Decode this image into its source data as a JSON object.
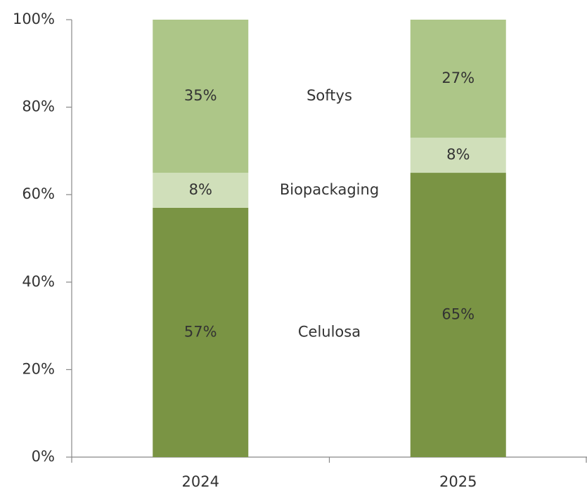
{
  "chart_data": {
    "type": "stacked_bar",
    "categories": [
      "2024",
      "2025"
    ],
    "series": [
      {
        "name": "Celulosa",
        "color": "#7a9444",
        "values": [
          57,
          65
        ],
        "value_labels": [
          "57%",
          "65%"
        ]
      },
      {
        "name": "Biopackaging",
        "color": "#d0dfba",
        "values": [
          8,
          8
        ],
        "value_labels": [
          "8%",
          "8%"
        ]
      },
      {
        "name": "Softys",
        "color": "#adc688",
        "values": [
          35,
          27
        ],
        "value_labels": [
          "35%",
          "27%"
        ]
      }
    ],
    "ylim": [
      0,
      100
    ],
    "yticks": [
      {
        "value": 0,
        "label": "0%"
      },
      {
        "value": 20,
        "label": "20%"
      },
      {
        "value": 40,
        "label": "40%"
      },
      {
        "value": 60,
        "label": "60%"
      },
      {
        "value": 80,
        "label": "80%"
      },
      {
        "value": 100,
        "label": "100%"
      }
    ]
  }
}
